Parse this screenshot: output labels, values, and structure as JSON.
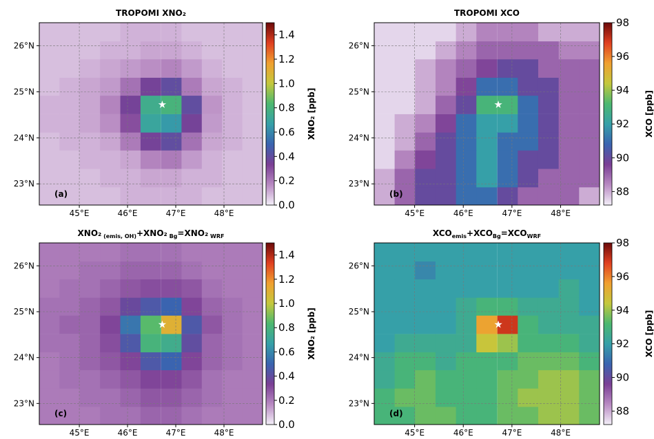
{
  "chart_data": [
    {
      "type": "heatmap",
      "title": "TROPOMI XNO₂",
      "panel_label": "(a)",
      "colorbar_label": "XNO₂ [ppb]",
      "x": [
        44.38,
        44.8,
        45.22,
        45.64,
        46.06,
        46.48,
        46.91,
        47.33,
        47.75,
        48.17,
        48.59
      ],
      "y": [
        22.74,
        23.13,
        23.53,
        23.93,
        24.32,
        24.72,
        25.12,
        25.51,
        25.91,
        26.3
      ],
      "values": [
        [
          0.08,
          0.08,
          0.08,
          0.08,
          0.1,
          0.1,
          0.1,
          0.1,
          0.08,
          0.08,
          0.08
        ],
        [
          0.08,
          0.08,
          0.08,
          0.1,
          0.1,
          0.12,
          0.12,
          0.1,
          0.1,
          0.08,
          0.08
        ],
        [
          0.08,
          0.08,
          0.1,
          0.1,
          0.12,
          0.18,
          0.2,
          0.14,
          0.1,
          0.08,
          0.08
        ],
        [
          0.08,
          0.1,
          0.1,
          0.12,
          0.2,
          0.35,
          0.4,
          0.22,
          0.12,
          0.1,
          0.08
        ],
        [
          0.1,
          0.1,
          0.12,
          0.16,
          0.3,
          0.7,
          0.65,
          0.35,
          0.14,
          0.1,
          0.08
        ],
        [
          0.1,
          0.1,
          0.12,
          0.18,
          0.35,
          0.75,
          0.8,
          0.4,
          0.15,
          0.1,
          0.08
        ],
        [
          0.08,
          0.1,
          0.12,
          0.14,
          0.22,
          0.35,
          0.4,
          0.2,
          0.12,
          0.1,
          0.08
        ],
        [
          0.08,
          0.08,
          0.1,
          0.12,
          0.14,
          0.16,
          0.18,
          0.14,
          0.1,
          0.08,
          0.08
        ],
        [
          0.08,
          0.08,
          0.08,
          0.1,
          0.1,
          0.12,
          0.12,
          0.1,
          0.08,
          0.08,
          0.08
        ],
        [
          0.08,
          0.08,
          0.08,
          0.08,
          0.1,
          0.1,
          0.1,
          0.08,
          0.08,
          0.08,
          0.08
        ]
      ],
      "xlim": [
        44.17,
        48.8
      ],
      "ylim": [
        22.54,
        26.5
      ],
      "xticks": [
        {
          "value": 45,
          "label": "45°E"
        },
        {
          "value": 46,
          "label": "46°E"
        },
        {
          "value": 47,
          "label": "47°E"
        },
        {
          "value": 48,
          "label": "48°E"
        }
      ],
      "yticks": [
        {
          "value": 23,
          "label": "23°N"
        },
        {
          "value": 24,
          "label": "24°N"
        },
        {
          "value": 25,
          "label": "25°N"
        },
        {
          "value": 26,
          "label": "26°N"
        }
      ],
      "clim": [
        0,
        1.5
      ],
      "cticks": [
        {
          "value": 0,
          "label": "0.0"
        },
        0.2,
        0.4,
        0.6,
        0.8,
        {
          "value": 1,
          "label": "1.0"
        },
        1.2,
        1.4
      ],
      "marker": {
        "x": 46.72,
        "y": 24.72,
        "color": "#ffffff"
      },
      "grid": true,
      "colormap": [
        "#f3eff8",
        "#b88ac2",
        "#7b3f95",
        "#3a64b0",
        "#36a0a8",
        "#4cb870",
        "#c4c83c",
        "#f0a030",
        "#e04020",
        "#6b0a0a"
      ]
    },
    {
      "type": "heatmap",
      "title": "TROPOMI XCO",
      "panel_label": "(b)",
      "colorbar_label": "XCO [ppb]",
      "x": [
        44.38,
        44.8,
        45.22,
        45.64,
        46.06,
        46.48,
        46.91,
        47.33,
        47.75,
        48.17,
        48.59
      ],
      "y": [
        22.74,
        23.13,
        23.53,
        23.93,
        24.32,
        24.72,
        25.12,
        25.51,
        25.91,
        26.3
      ],
      "values": [
        [
          88,
          89,
          90,
          90,
          91,
          91,
          90,
          89,
          89,
          89,
          88
        ],
        [
          88,
          89,
          90,
          90,
          91,
          92,
          91,
          90,
          89,
          89,
          89
        ],
        [
          87.5,
          88.5,
          89.5,
          90,
          91,
          92,
          91,
          90,
          90,
          89,
          89
        ],
        [
          87.5,
          88,
          89,
          90,
          91,
          92,
          91,
          91,
          90,
          89,
          89
        ],
        [
          87.5,
          88,
          88.5,
          89.5,
          91,
          92,
          92,
          91,
          90,
          89,
          89
        ],
        [
          87.5,
          87.5,
          88,
          89,
          90,
          93,
          93,
          91,
          90,
          89,
          89
        ],
        [
          87.5,
          87.5,
          88,
          88.5,
          89.5,
          91,
          91,
          90,
          90,
          89,
          89
        ],
        [
          87.5,
          87.5,
          88,
          88.5,
          89,
          89.5,
          90,
          90,
          89,
          89,
          89
        ],
        [
          87.5,
          87.5,
          87.5,
          88,
          88.5,
          89,
          89,
          89,
          89,
          88.5,
          88.5
        ],
        [
          87.5,
          87.5,
          87.5,
          87.5,
          88,
          88.5,
          88.5,
          88.5,
          88,
          88,
          88
        ]
      ],
      "xlim": [
        44.17,
        48.8
      ],
      "ylim": [
        22.54,
        26.5
      ],
      "xticks": [
        {
          "value": 45,
          "label": "45°E"
        },
        {
          "value": 46,
          "label": "46°E"
        },
        {
          "value": 47,
          "label": "47°E"
        },
        {
          "value": 48,
          "label": "48°E"
        }
      ],
      "yticks": [
        {
          "value": 23,
          "label": "23°N"
        },
        {
          "value": 24,
          "label": "24°N"
        },
        {
          "value": 25,
          "label": "25°N"
        },
        {
          "value": 26,
          "label": "26°N"
        }
      ],
      "clim": [
        87.2,
        98
      ],
      "cticks": [
        88,
        90,
        92,
        94,
        96,
        98
      ],
      "marker": {
        "x": 46.72,
        "y": 24.72,
        "color": "#ffffff"
      },
      "grid": true,
      "colormap": [
        "#f3eff8",
        "#b88ac2",
        "#7b3f95",
        "#3a64b0",
        "#36a0a8",
        "#4cb870",
        "#c4c83c",
        "#f0a030",
        "#e04020",
        "#6b0a0a"
      ]
    },
    {
      "type": "heatmap",
      "title": [
        {
          "text": "XNO₂"
        },
        {
          "text": " (emis, OH)",
          "sub": true
        },
        {
          "text": "+XNO₂"
        },
        {
          "text": " Bg",
          "sub": true
        },
        {
          "text": "=XNO₂"
        },
        {
          "text": " WRF",
          "sub": true
        }
      ],
      "panel_label": "(c)",
      "colorbar_label": "XNO₂ [ppb]",
      "x": [
        44.38,
        44.8,
        45.22,
        45.64,
        46.06,
        46.48,
        46.91,
        47.33,
        47.75,
        48.17,
        48.59
      ],
      "y": [
        22.74,
        23.13,
        23.53,
        23.93,
        24.32,
        24.72,
        25.12,
        25.51,
        25.91,
        26.3
      ],
      "values": [
        [
          0.2,
          0.2,
          0.2,
          0.22,
          0.22,
          0.25,
          0.25,
          0.22,
          0.2,
          0.2,
          0.2
        ],
        [
          0.2,
          0.2,
          0.22,
          0.22,
          0.25,
          0.28,
          0.28,
          0.25,
          0.22,
          0.2,
          0.2
        ],
        [
          0.2,
          0.22,
          0.22,
          0.25,
          0.28,
          0.32,
          0.32,
          0.28,
          0.22,
          0.2,
          0.2
        ],
        [
          0.2,
          0.22,
          0.25,
          0.28,
          0.32,
          0.45,
          0.5,
          0.32,
          0.25,
          0.22,
          0.2
        ],
        [
          0.22,
          0.22,
          0.25,
          0.3,
          0.45,
          0.8,
          0.75,
          0.4,
          0.25,
          0.22,
          0.2
        ],
        [
          0.22,
          0.25,
          0.25,
          0.32,
          0.55,
          0.85,
          1.1,
          0.45,
          0.28,
          0.22,
          0.2
        ],
        [
          0.22,
          0.22,
          0.25,
          0.28,
          0.38,
          0.45,
          0.5,
          0.32,
          0.25,
          0.22,
          0.2
        ],
        [
          0.2,
          0.22,
          0.22,
          0.25,
          0.28,
          0.3,
          0.3,
          0.28,
          0.22,
          0.2,
          0.2
        ],
        [
          0.2,
          0.2,
          0.22,
          0.22,
          0.25,
          0.25,
          0.25,
          0.22,
          0.2,
          0.2,
          0.2
        ],
        [
          0.2,
          0.2,
          0.2,
          0.2,
          0.22,
          0.22,
          0.22,
          0.2,
          0.2,
          0.2,
          0.2
        ]
      ],
      "xlim": [
        44.17,
        48.8
      ],
      "ylim": [
        22.54,
        26.5
      ],
      "xticks": [
        {
          "value": 45,
          "label": "45°E"
        },
        {
          "value": 46,
          "label": "46°E"
        },
        {
          "value": 47,
          "label": "47°E"
        },
        {
          "value": 48,
          "label": "48°E"
        }
      ],
      "yticks": [
        {
          "value": 23,
          "label": "23°N"
        },
        {
          "value": 24,
          "label": "24°N"
        },
        {
          "value": 25,
          "label": "25°N"
        },
        {
          "value": 26,
          "label": "26°N"
        }
      ],
      "clim": [
        0,
        1.5
      ],
      "cticks": [
        {
          "value": 0,
          "label": "0.0"
        },
        0.2,
        0.4,
        0.6,
        0.8,
        {
          "value": 1,
          "label": "1.0"
        },
        1.2,
        1.4
      ],
      "marker": {
        "x": 46.72,
        "y": 24.72,
        "color": "#ffffff"
      },
      "grid": true,
      "colormap": [
        "#f3eff8",
        "#b88ac2",
        "#7b3f95",
        "#3a64b0",
        "#36a0a8",
        "#4cb870",
        "#c4c83c",
        "#f0a030",
        "#e04020",
        "#6b0a0a"
      ]
    },
    {
      "type": "heatmap",
      "title": [
        {
          "text": "XCO"
        },
        {
          "text": "emis",
          "sub": true
        },
        {
          "text": "+XCO"
        },
        {
          "text": "Bg",
          "sub": true
        },
        {
          "text": "=XCO"
        },
        {
          "text": "WRF",
          "sub": true
        }
      ],
      "panel_label": "(d)",
      "colorbar_label": "XCO [ppb]",
      "x": [
        44.38,
        44.8,
        45.22,
        45.64,
        46.06,
        46.48,
        46.91,
        47.33,
        47.75,
        48.17,
        48.59
      ],
      "y": [
        22.74,
        23.13,
        23.53,
        23.93,
        24.32,
        24.72,
        25.12,
        25.51,
        25.91,
        26.3
      ],
      "values": [
        [
          93,
          93,
          93.5,
          93.5,
          93,
          93,
          93.5,
          93.5,
          94,
          94,
          93.5
        ],
        [
          93,
          93.5,
          93.5,
          93,
          93,
          93,
          93.5,
          94,
          94,
          94,
          93.5
        ],
        [
          92.5,
          93,
          93.5,
          93,
          93,
          93,
          93.5,
          93.5,
          94,
          94,
          93.5
        ],
        [
          92.5,
          93,
          93,
          92.5,
          93,
          93,
          93,
          93.5,
          93.5,
          93.5,
          93
        ],
        [
          92,
          92.5,
          92.5,
          92.5,
          92.5,
          94.5,
          94,
          93,
          93,
          93,
          92.5
        ],
        [
          92,
          92,
          92,
          92,
          92.5,
          95.5,
          97,
          93,
          92.5,
          92.5,
          92.5
        ],
        [
          92,
          92,
          92,
          92,
          92.5,
          93,
          93,
          92.5,
          92.5,
          92.5,
          92
        ],
        [
          92,
          92,
          92,
          92,
          92,
          92,
          92,
          92,
          92,
          92.5,
          92
        ],
        [
          92,
          92,
          91.5,
          92,
          92,
          92,
          92,
          92,
          92,
          92,
          92
        ],
        [
          92,
          92,
          92,
          92,
          92,
          92,
          92,
          92,
          92,
          92,
          92
        ]
      ],
      "xlim": [
        44.17,
        48.8
      ],
      "ylim": [
        22.54,
        26.5
      ],
      "xticks": [
        {
          "value": 45,
          "label": "45°E"
        },
        {
          "value": 46,
          "label": "46°E"
        },
        {
          "value": 47,
          "label": "47°E"
        },
        {
          "value": 48,
          "label": "48°E"
        }
      ],
      "yticks": [
        {
          "value": 23,
          "label": "23°N"
        },
        {
          "value": 24,
          "label": "24°N"
        },
        {
          "value": 25,
          "label": "25°N"
        },
        {
          "value": 26,
          "label": "26°N"
        }
      ],
      "clim": [
        87.2,
        98
      ],
      "cticks": [
        88,
        90,
        92,
        94,
        96,
        98
      ],
      "marker": {
        "x": 46.72,
        "y": 24.72,
        "color": "#ffffff"
      },
      "grid": true,
      "colormap": [
        "#f3eff8",
        "#b88ac2",
        "#7b3f95",
        "#3a64b0",
        "#36a0a8",
        "#4cb870",
        "#c4c83c",
        "#f0a030",
        "#e04020",
        "#6b0a0a"
      ]
    }
  ]
}
